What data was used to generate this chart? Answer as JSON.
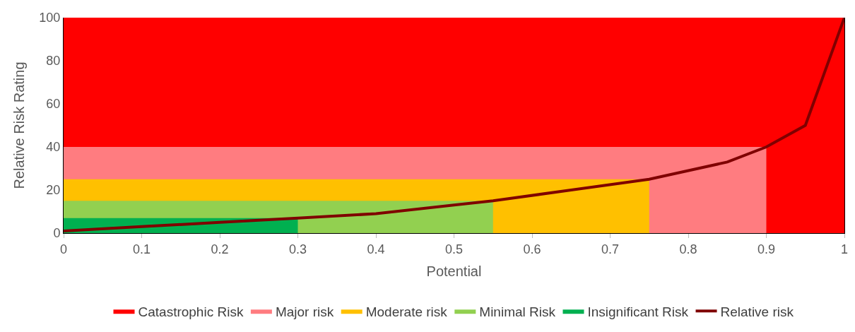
{
  "chart_data": {
    "type": "area",
    "xlabel": "Potential",
    "ylabel": "Relative Risk Rating",
    "xlim": [
      0,
      1
    ],
    "xticks": [
      0,
      0.1,
      0.2,
      0.3,
      0.4,
      0.5,
      0.6,
      0.7,
      0.8,
      0.9,
      1
    ],
    "ylim": [
      0,
      100
    ],
    "yticks": [
      0,
      20,
      40,
      60,
      80,
      100
    ],
    "legend": "bottom",
    "marker": "none",
    "series": [
      {
        "name": "Catastrophic Risk",
        "color": "#ff0000",
        "x": [
          0,
          1
        ],
        "values": [
          100,
          100
        ]
      },
      {
        "name": "Major risk",
        "color": "#ff7c80",
        "x": [
          0,
          0.9
        ],
        "values": [
          40,
          40
        ]
      },
      {
        "name": "Moderate risk",
        "color": "#ffc000",
        "x": [
          0,
          0.75
        ],
        "values": [
          25,
          25
        ]
      },
      {
        "name": "Minimal Risk",
        "color": "#92d050",
        "x": [
          0,
          0.55
        ],
        "values": [
          15,
          15
        ]
      },
      {
        "name": "Insignificant Risk",
        "color": "#00b050",
        "x": [
          0,
          0.3
        ],
        "values": [
          7,
          7
        ]
      },
      {
        "name": "Relative risk",
        "type": "line",
        "color": "#7f0000",
        "x": [
          0,
          0.1,
          0.2,
          0.3,
          0.4,
          0.5,
          0.55,
          0.65,
          0.75,
          0.85,
          0.9,
          0.95,
          1
        ],
        "values": [
          1,
          3,
          5,
          7,
          9,
          13,
          15,
          20,
          25,
          33,
          40,
          50,
          100
        ]
      }
    ]
  }
}
